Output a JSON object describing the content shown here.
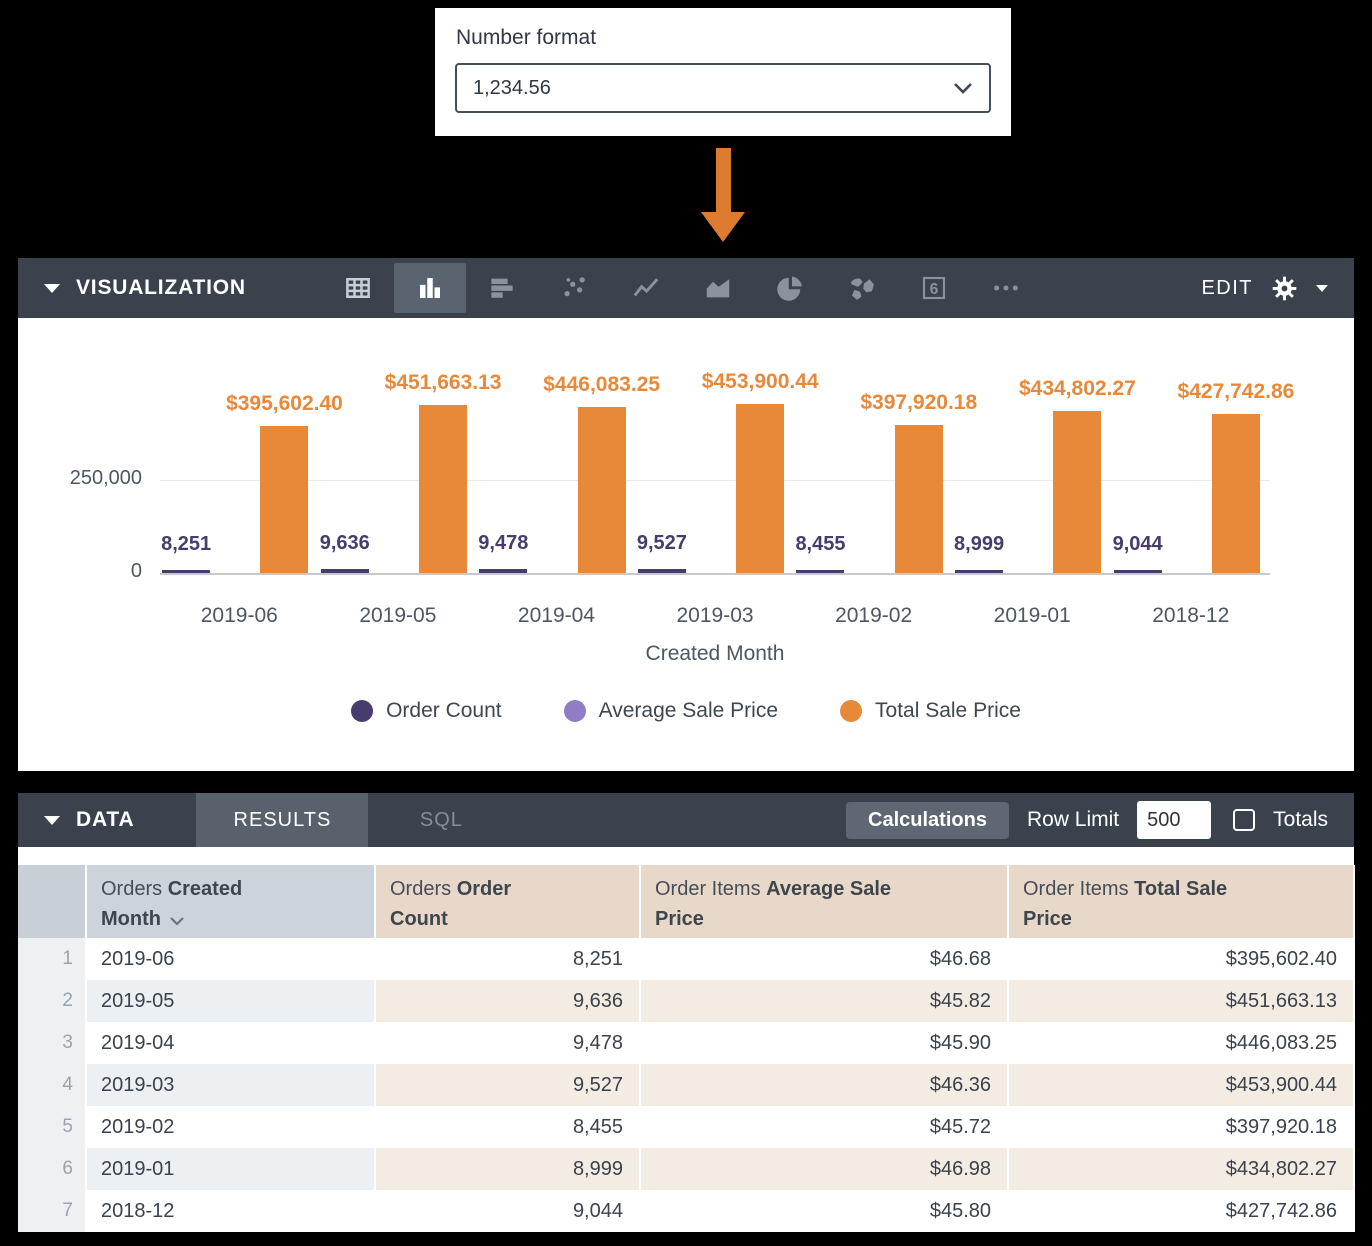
{
  "number_format_popup": {
    "label": "Number format",
    "selected_value": "1,234.56"
  },
  "visualization_panel": {
    "title": "VISUALIZATION",
    "edit_label": "EDIT",
    "icons": [
      {
        "name": "table-icon",
        "selected": false
      },
      {
        "name": "column-chart-icon",
        "selected": true
      },
      {
        "name": "bar-chart-icon",
        "selected": false
      },
      {
        "name": "scatter-chart-icon",
        "selected": false
      },
      {
        "name": "line-chart-icon",
        "selected": false
      },
      {
        "name": "area-chart-icon",
        "selected": false
      },
      {
        "name": "pie-chart-icon",
        "selected": false
      },
      {
        "name": "map-chart-icon",
        "selected": false
      },
      {
        "name": "single-value-icon",
        "selected": false
      },
      {
        "name": "more-icon",
        "selected": false
      }
    ]
  },
  "chart_data": {
    "type": "bar",
    "xlabel": "Created Month",
    "categories": [
      "2019-06",
      "2019-05",
      "2019-04",
      "2019-03",
      "2019-02",
      "2019-01",
      "2018-12"
    ],
    "y_axis": {
      "ticks": [
        {
          "value": 250000,
          "label": "250,000"
        },
        {
          "value": 0,
          "label": "0"
        }
      ],
      "ylim": [
        0,
        630000
      ],
      "grid": true
    },
    "legend_position": "bottom",
    "series": [
      {
        "name": "Order Count",
        "color": "#483b6d",
        "values": [
          8251,
          9636,
          9478,
          9527,
          8455,
          8999,
          9044
        ],
        "labels": [
          "8,251",
          "9,636",
          "9,478",
          "9,527",
          "8,455",
          "8,999",
          "9,044"
        ],
        "show_labels": true
      },
      {
        "name": "Average Sale Price",
        "color": "#8f7ec4",
        "values": [
          46.68,
          45.82,
          45.9,
          46.36,
          45.72,
          46.98,
          45.8
        ],
        "labels": [],
        "show_labels": false
      },
      {
        "name": "Total Sale Price",
        "color": "#e8893a",
        "values": [
          395602.4,
          451663.13,
          446083.25,
          453900.44,
          397920.18,
          434802.27,
          427742.86
        ],
        "labels": [
          "$395,602.40",
          "$451,663.13",
          "$446,083.25",
          "$453,900.44",
          "$397,920.18",
          "$434,802.27",
          "$427,742.86"
        ],
        "show_labels": true
      }
    ]
  },
  "data_panel": {
    "title": "DATA",
    "tabs": [
      {
        "label": "RESULTS",
        "active": true
      },
      {
        "label": "SQL",
        "active": false
      }
    ],
    "calculations_button": "Calculations",
    "row_limit_label": "Row Limit",
    "row_limit_value": "500",
    "totals_label": "Totals",
    "totals_checked": false
  },
  "table": {
    "columns": [
      {
        "prefix": "Orders",
        "name": "Created Month",
        "sorted": "desc"
      },
      {
        "prefix": "Orders",
        "name": "Order Count"
      },
      {
        "prefix": "Order Items",
        "name": "Average Sale Price"
      },
      {
        "prefix": "Order Items",
        "name": "Total Sale Price"
      }
    ],
    "rows": [
      {
        "num": "1",
        "cells": [
          "2019-06",
          "8,251",
          "$46.68",
          "$395,602.40"
        ]
      },
      {
        "num": "2",
        "cells": [
          "2019-05",
          "9,636",
          "$45.82",
          "$451,663.13"
        ]
      },
      {
        "num": "3",
        "cells": [
          "2019-04",
          "9,478",
          "$45.90",
          "$446,083.25"
        ]
      },
      {
        "num": "4",
        "cells": [
          "2019-03",
          "9,527",
          "$46.36",
          "$453,900.44"
        ]
      },
      {
        "num": "5",
        "cells": [
          "2019-02",
          "8,455",
          "$45.72",
          "$397,920.18"
        ]
      },
      {
        "num": "6",
        "cells": [
          "2019-01",
          "8,999",
          "$46.98",
          "$434,802.27"
        ]
      },
      {
        "num": "7",
        "cells": [
          "2018-12",
          "9,044",
          "$45.80",
          "$427,742.86"
        ]
      }
    ]
  }
}
